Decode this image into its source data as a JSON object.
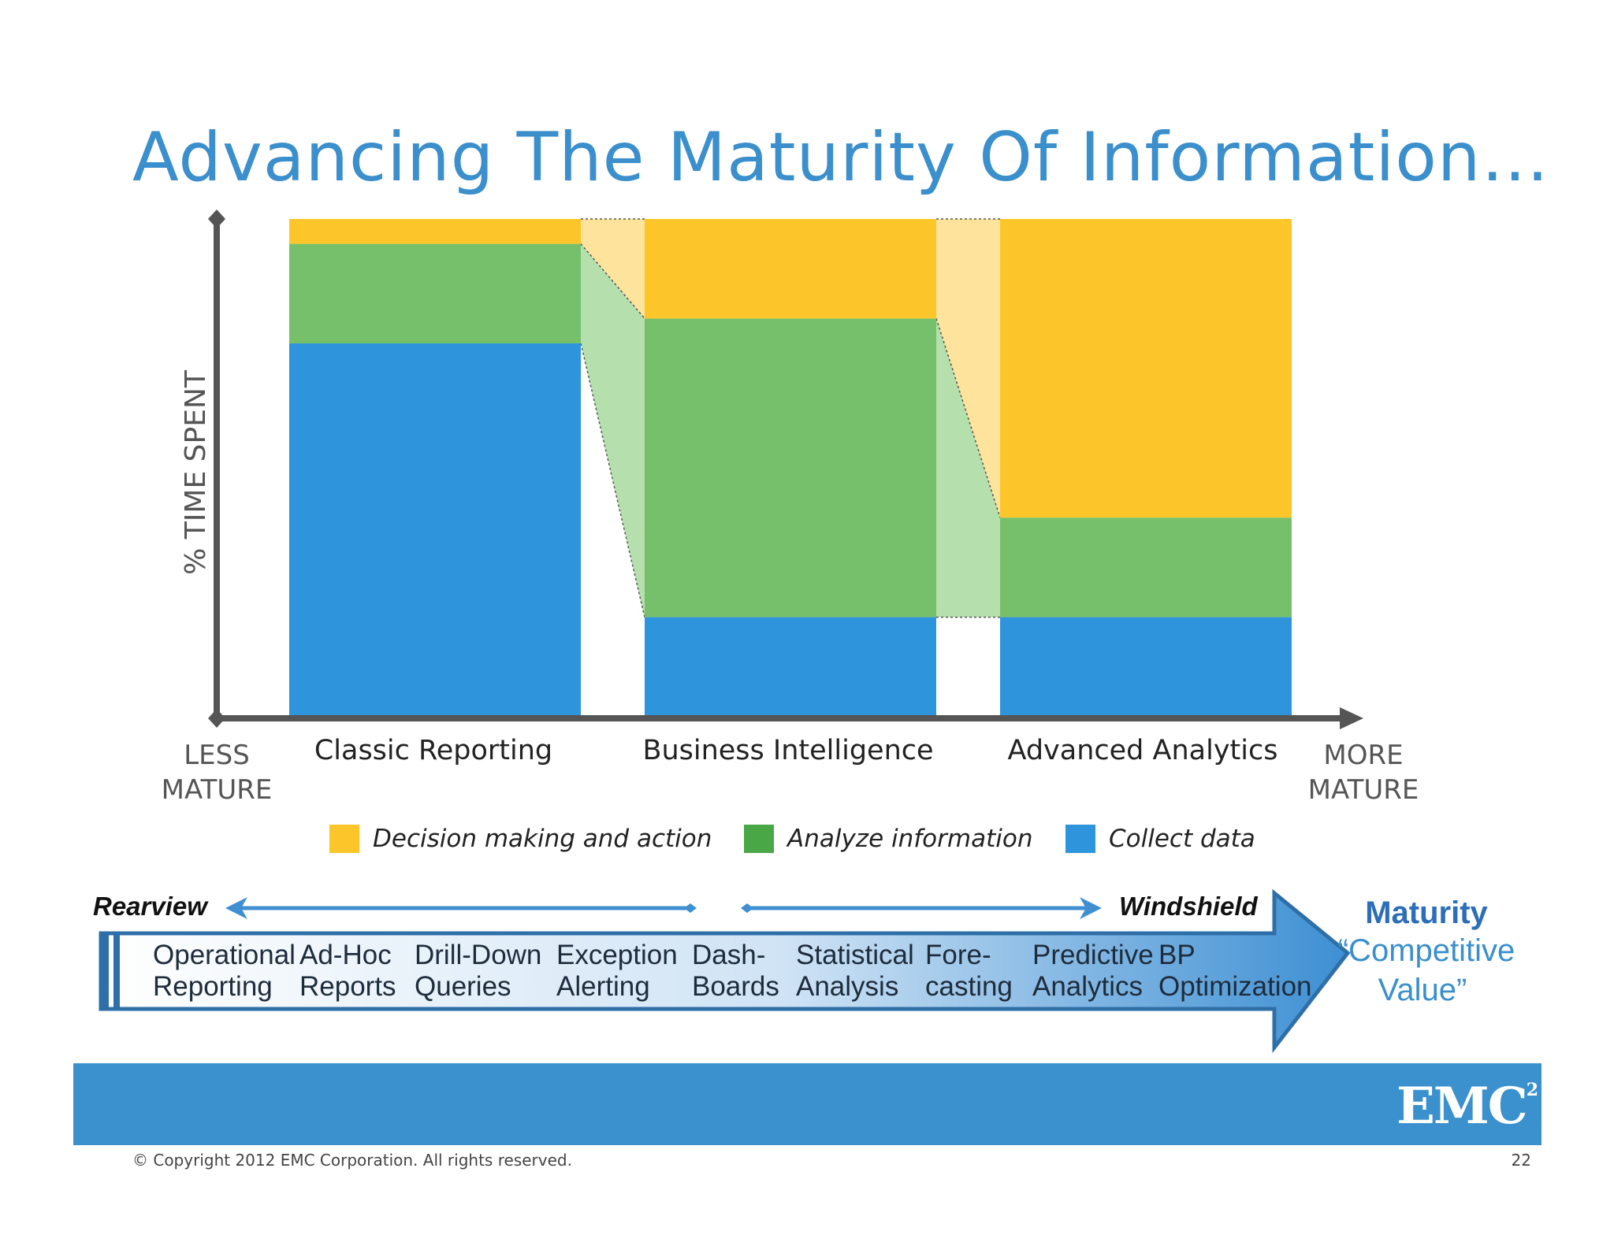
{
  "title": "Advancing The Maturity Of Information…",
  "chart_data": {
    "type": "bar",
    "stacked": true,
    "ylabel": "% TIME SPENT",
    "xlabel_left": [
      "LESS",
      "MATURE"
    ],
    "xlabel_right": [
      "MORE",
      "MATURE"
    ],
    "categories": [
      "Classic Reporting",
      "Business Intelligence",
      "Advanced Analytics"
    ],
    "series": [
      {
        "name": "Collect data",
        "color": "#2e95dd",
        "values": [
          75,
          20,
          20
        ]
      },
      {
        "name": "Analyze information",
        "color": "#76c06b",
        "values": [
          20,
          60,
          20
        ]
      },
      {
        "name": "Decision making and action",
        "color": "#fcc52a",
        "values": [
          5,
          20,
          60
        ]
      }
    ],
    "legend": [
      "Decision making and action",
      "Analyze information",
      "Collect data"
    ],
    "legend_colors": [
      "#fcc52a",
      "#4aa746",
      "#2e95dd"
    ],
    "ylim": [
      0,
      100
    ],
    "legend_position": "bottom"
  },
  "arrow": {
    "left_label": "Rearview",
    "right_label": "Windshield",
    "stages": [
      [
        "Operational",
        "Reporting"
      ],
      [
        "Ad-Hoc",
        "Reports"
      ],
      [
        "Drill-Down",
        "Queries"
      ],
      [
        "Exception",
        "Alerting"
      ],
      [
        "Dash-",
        "Boards"
      ],
      [
        "Statistical",
        "Analysis"
      ],
      [
        "Fore-",
        "casting"
      ],
      [
        "Predictive",
        "Analytics"
      ],
      [
        "BP",
        "Optimization"
      ]
    ]
  },
  "maturity": {
    "line1": "Maturity",
    "line2": "“Competitive",
    "line3": "Value”"
  },
  "logo": "EMC",
  "logo_sup": "2",
  "copyright": "© Copyright 2012 EMC Corporation. All rights reserved.",
  "page_number": "22"
}
